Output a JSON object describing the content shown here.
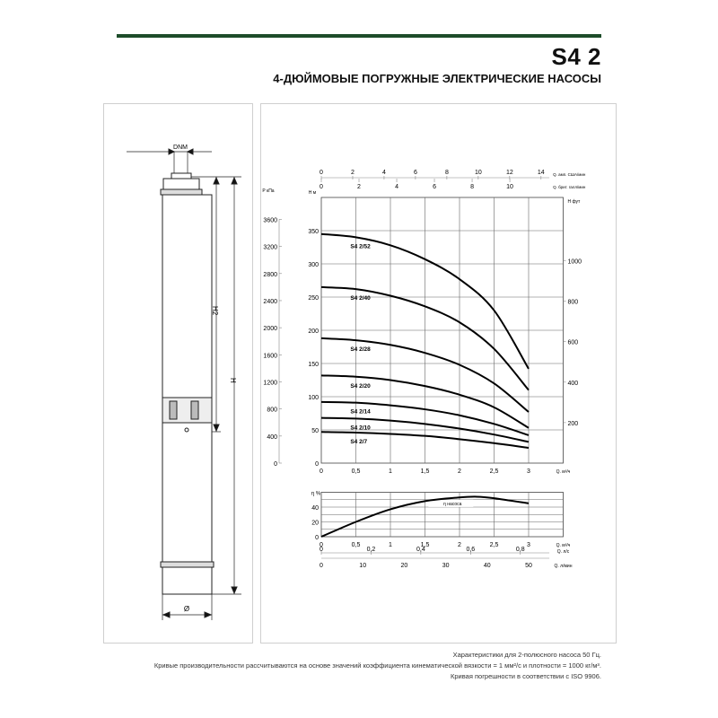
{
  "header": {
    "model": "S4 2",
    "subtitle": "4-ДЮЙМОВЫЕ ПОГРУЖНЫЕ ЭЛЕКТРИЧЕСКИЕ НАСОСЫ",
    "accent_color": "#1d4d2a"
  },
  "drawing": {
    "dnm_label": "DNM",
    "h2_label": "H2",
    "h_label": "H",
    "diameter_label": "Ø"
  },
  "chart_data": [
    {
      "type": "line",
      "title": "",
      "xlabel": "Q. м³/ч",
      "ylabel": "H м",
      "xlim": [
        0,
        3.5
      ],
      "ylim": [
        0,
        400
      ],
      "grid": true,
      "x": [
        0,
        0.5,
        1,
        1.5,
        2,
        2.5,
        3
      ],
      "x_ticks": [
        "0",
        "0,5",
        "1",
        "1,5",
        "2",
        "2,5",
        "3"
      ],
      "y_ticks": [
        "0",
        "50",
        "100",
        "150",
        "200",
        "250",
        "300",
        "350"
      ],
      "pressure_axis": {
        "label_top": "P",
        "label_unit": "кПа",
        "ticks": [
          "0",
          "400",
          "800",
          "1200",
          "1600",
          "2000",
          "2400",
          "2800",
          "3200",
          "3600"
        ]
      },
      "feet_axis": {
        "label_top": "H",
        "label_unit": "фут",
        "ticks": [
          "200",
          "400",
          "600",
          "800",
          "1000"
        ]
      },
      "us_gpm_axis": {
        "label": "Q. амп. США/мин",
        "ticks": [
          "0",
          "2",
          "4",
          "6",
          "8",
          "10",
          "12",
          "14"
        ]
      },
      "imp_gpm_axis": {
        "label": "Q. брит. галл/мин",
        "ticks": [
          "0",
          "2",
          "4",
          "6",
          "8",
          "10"
        ]
      },
      "series": [
        {
          "name": "S4 2/52",
          "values": [
            345,
            340,
            328,
            307,
            277,
            230,
            142
          ]
        },
        {
          "name": "S4 2/40",
          "values": [
            265,
            262,
            252,
            236,
            212,
            172,
            110
          ]
        },
        {
          "name": "S4 2/28",
          "values": [
            188,
            185,
            178,
            166,
            148,
            120,
            77
          ]
        },
        {
          "name": "S4 2/20",
          "values": [
            132,
            130,
            125,
            116,
            103,
            84,
            53
          ]
        },
        {
          "name": "S4 2/14",
          "values": [
            92,
            91,
            87,
            81,
            72,
            59,
            42
          ]
        },
        {
          "name": "S4 2/10",
          "values": [
            68,
            67,
            64,
            59,
            52,
            43,
            32
          ]
        },
        {
          "name": "S4 2/7",
          "values": [
            47,
            46,
            44,
            41,
            36,
            30,
            23
          ]
        }
      ]
    },
    {
      "type": "line",
      "title": "",
      "xlabel": "Q. м³/ч",
      "ylabel": "η %",
      "xlim": [
        0,
        3.5
      ],
      "ylim": [
        0,
        60
      ],
      "grid": true,
      "x": [
        0,
        0.5,
        1,
        1.5,
        2,
        2.25,
        2.5,
        3
      ],
      "x_ticks": [
        "0",
        "0,5",
        "1",
        "1,5",
        "2",
        "2,5",
        "3"
      ],
      "y_ticks": [
        "0",
        "20",
        "40"
      ],
      "series": [
        {
          "name": "η насоса",
          "values": [
            0,
            20,
            37,
            48,
            53,
            54,
            52,
            45
          ]
        }
      ],
      "ls_axis": {
        "label": "Q. л/с",
        "ticks": [
          "0",
          "0,2",
          "0,4",
          "0,6",
          "0,8"
        ]
      },
      "lmin_axis": {
        "label": "Q. л/мин",
        "ticks": [
          "0",
          "10",
          "20",
          "30",
          "40",
          "50"
        ]
      }
    }
  ],
  "footer": {
    "line1": "Характеристики для 2-полюсного насоса 50 Гц.",
    "line2": "Кривые производительности рассчитываются на основе значений коэффициента кинематической вязкости = 1 мм²/с и плотности = 1000 кг/м³.",
    "line3": "Кривая погрешности в соответствии с ISO 9906."
  }
}
